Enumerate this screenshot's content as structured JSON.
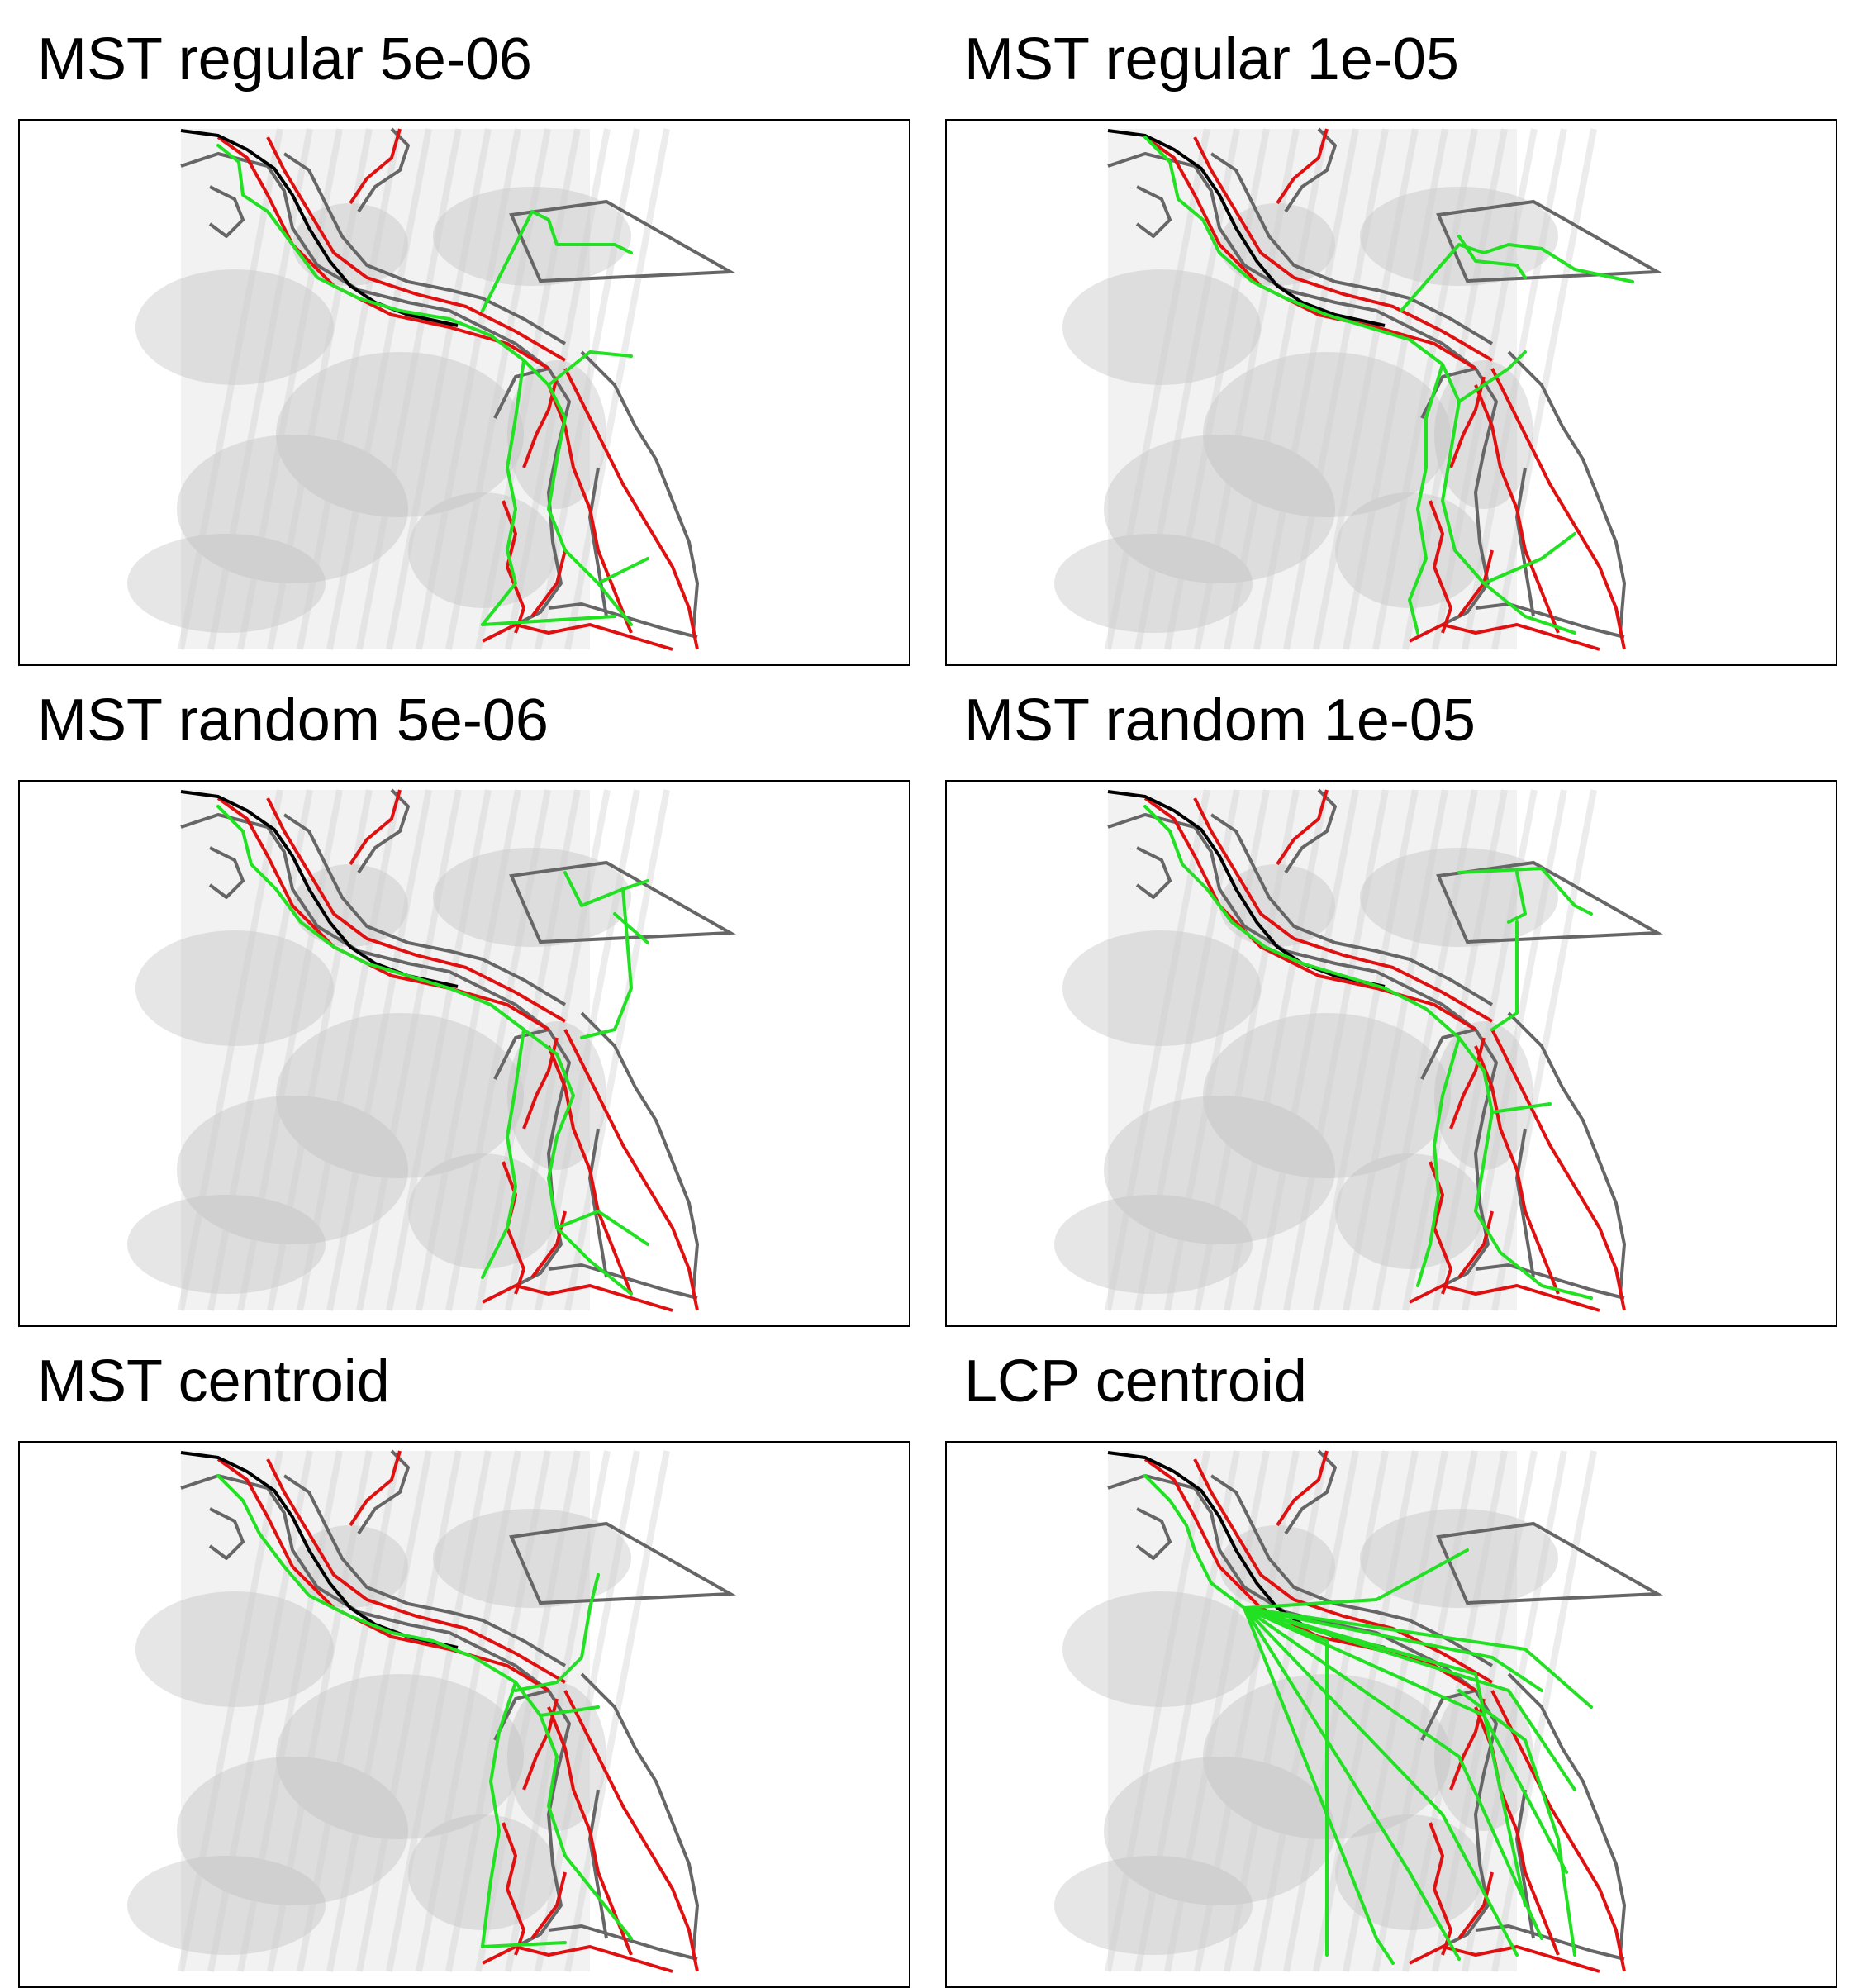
{
  "figure": {
    "panels": [
      {
        "title": "MST regular 5e-06",
        "network": "mst-regular-coarse"
      },
      {
        "title": "MST regular 1e-05",
        "network": "mst-regular-fine"
      },
      {
        "title": "MST random 5e-06",
        "network": "mst-random-coarse"
      },
      {
        "title": "MST random 1e-05",
        "network": "mst-random-fine"
      },
      {
        "title": "MST centroid",
        "network": "mst-centroid"
      },
      {
        "title": "LCP centroid",
        "network": "lcp-centroid"
      }
    ]
  },
  "colors": {
    "network": "#22e022",
    "red_lines": "#e01010",
    "polygons": "#666666",
    "black_line": "#000000",
    "relief_light": "#f2f2f2",
    "relief_dark": "#b8b8b8"
  }
}
